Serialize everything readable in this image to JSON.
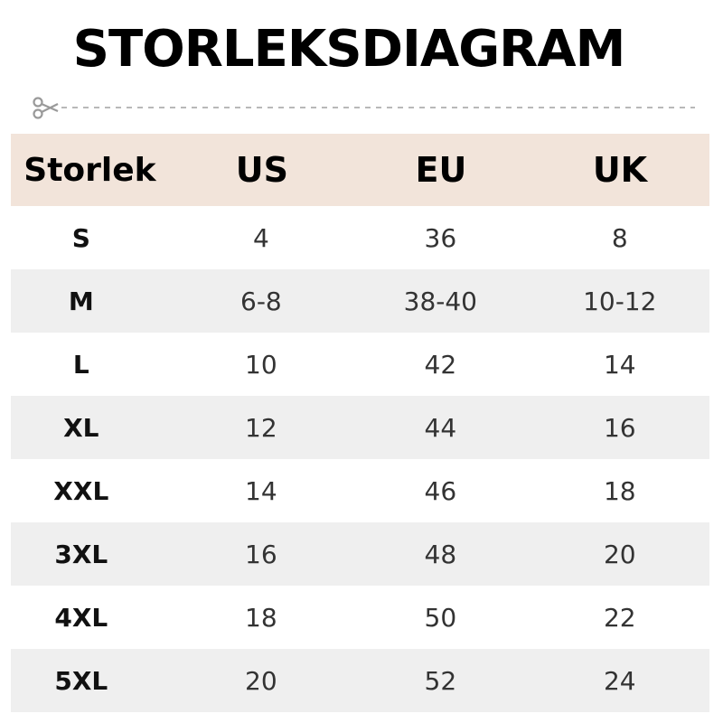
{
  "title": "STORLEKSDIAGRAM",
  "colors": {
    "header_bg": "#f2e4da",
    "alt_row_bg": "#efefef",
    "cut_line": "#999999"
  },
  "cut_icon": "scissors-icon",
  "table": {
    "headers": [
      "Storlek",
      "US",
      "EU",
      "UK"
    ],
    "rows": [
      [
        "S",
        "4",
        "36",
        "8"
      ],
      [
        "M",
        "6-8",
        "38-40",
        "10-12"
      ],
      [
        "L",
        "10",
        "42",
        "14"
      ],
      [
        "XL",
        "12",
        "44",
        "16"
      ],
      [
        "XXL",
        "14",
        "46",
        "18"
      ],
      [
        "3XL",
        "16",
        "48",
        "20"
      ],
      [
        "4XL",
        "18",
        "50",
        "22"
      ],
      [
        "5XL",
        "20",
        "52",
        "24"
      ]
    ]
  }
}
